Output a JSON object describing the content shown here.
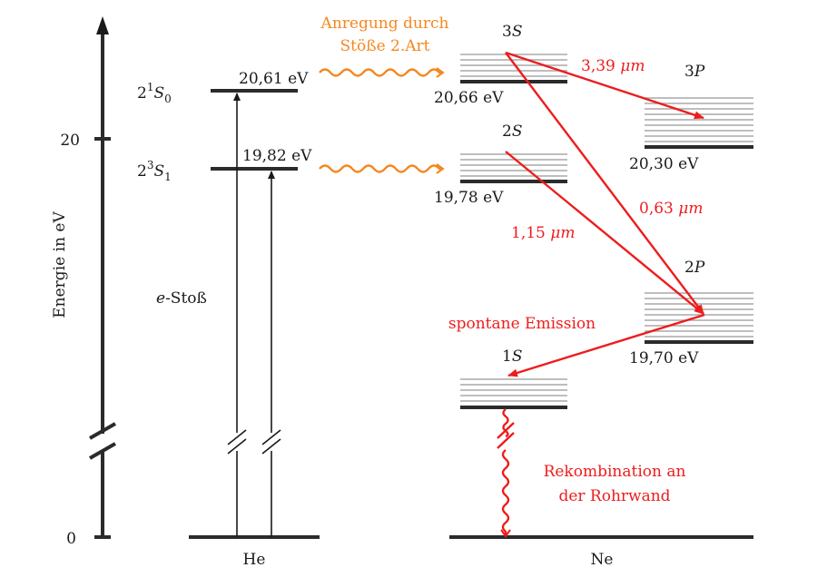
{
  "axis": {
    "label": "Energie in eV",
    "tick_0": "0",
    "tick_20": "20"
  },
  "helium": {
    "name": "He",
    "level_singlet": {
      "prefix": "2",
      "sup": "1",
      "sym": "S",
      "sub": "0"
    },
    "level_triplet": {
      "prefix": "2",
      "sup": "3",
      "sym": "S",
      "sub": "1"
    },
    "energy_singlet": "20,61 eV",
    "energy_triplet": "19,82 eV",
    "excitation_label": {
      "e": "e",
      "rest": "-Stoß"
    }
  },
  "transfer": {
    "line1": "Anregung durch",
    "line2": "Stöße 2.Art"
  },
  "neon": {
    "name": "Ne",
    "s3": {
      "num": "3",
      "sym": "S"
    },
    "s2": {
      "num": "2",
      "sym": "S"
    },
    "s1": {
      "num": "1",
      "sym": "S"
    },
    "p3": {
      "num": "3",
      "sym": "P"
    },
    "p2": {
      "num": "2",
      "sym": "P"
    },
    "energy_3s": "20,66 eV",
    "energy_2s": "19,78 eV",
    "energy_3p": "20,30 eV",
    "energy_2p": "19,70 eV"
  },
  "transitions": {
    "t339": {
      "value": "3,39 ",
      "unit": "μm"
    },
    "t063": {
      "value": "0,63 ",
      "unit": "μm"
    },
    "t115": {
      "value": "1,15 ",
      "unit": "μm"
    },
    "spontaneous": "spontane Emission",
    "recomb_line1": "Rekombination an",
    "recomb_line2": "der Rohrwand"
  },
  "colors": {
    "line": "#2b2b2b",
    "red": "#ee1c1c",
    "orange": "#f5871f",
    "sublevel": "#a8a8a8"
  }
}
